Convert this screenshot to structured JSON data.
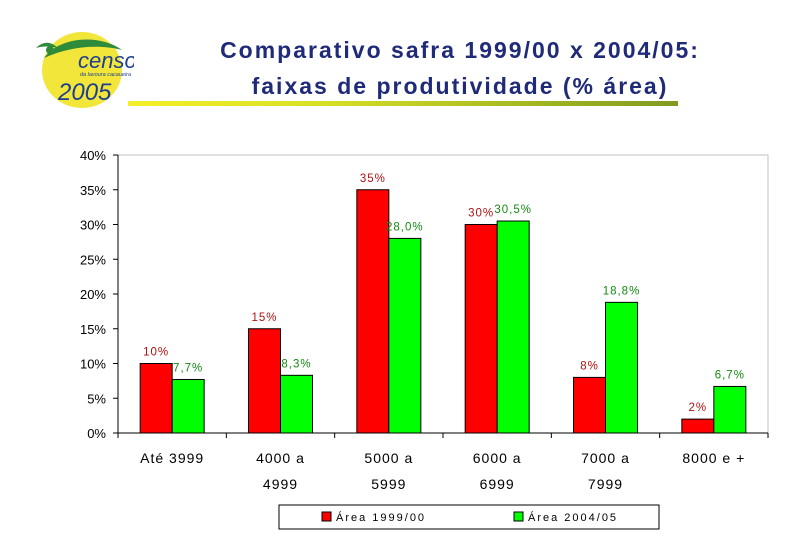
{
  "header": {
    "title_line1": "Comparativo safra 1999/00 x 2004/05:",
    "title_line2": "faixas de produtividade (% área)",
    "logo": {
      "word": "censo",
      "subtitle": "da lavoura cacaueira",
      "year": "2005"
    }
  },
  "chart_data": {
    "type": "bar",
    "categories": [
      [
        "Até 3999"
      ],
      [
        "4000 a",
        "4999"
      ],
      [
        "5000 a",
        "5999"
      ],
      [
        "6000 a",
        "6999"
      ],
      [
        "7000 a",
        "7999"
      ],
      [
        "8000 e +"
      ]
    ],
    "series": [
      {
        "name": "Área 1999/00",
        "color": "#ff0000",
        "values": [
          10,
          15,
          35,
          30,
          8,
          2
        ],
        "labels": [
          "10%",
          "15%",
          "35%",
          "30%",
          "8%",
          "2%"
        ],
        "label_color": "#b01010"
      },
      {
        "name": "Área 2004/05",
        "color": "#00ff00",
        "values": [
          7.7,
          8.3,
          28.0,
          30.5,
          18.8,
          6.7
        ],
        "labels": [
          "7,7%",
          "8,3%",
          "28,0%",
          "30,5%",
          "18,8%",
          "6,7%"
        ],
        "label_color": "#138a13"
      }
    ],
    "ylim": [
      0,
      40
    ],
    "yticks": [
      "0%",
      "5%",
      "10%",
      "15%",
      "20%",
      "25%",
      "30%",
      "35%",
      "40%"
    ],
    "ytick_values": [
      0,
      5,
      10,
      15,
      20,
      25,
      30,
      35,
      40
    ],
    "grid": false,
    "legend": "bottom"
  }
}
